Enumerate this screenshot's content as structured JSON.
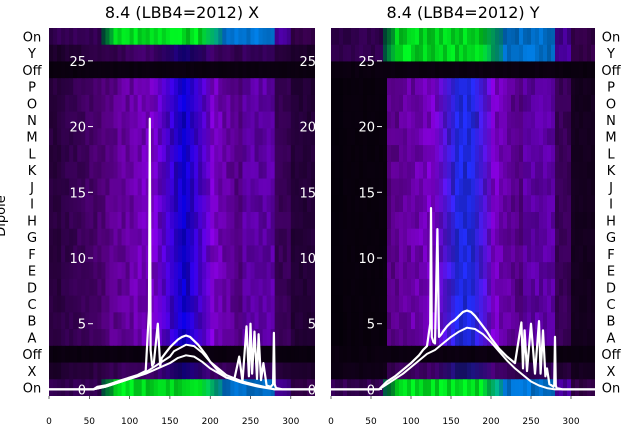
{
  "chart_data": [
    {
      "type": "heatmap",
      "title": "8.4 (LBB4=2012) X",
      "ylabel": "Dipole",
      "row_labels_top_to_bottom": [
        "On",
        "Y",
        "Off",
        "P",
        "O",
        "N",
        "M",
        "L",
        "K",
        "J",
        "I",
        "H",
        "G",
        "F",
        "E",
        "D",
        "C",
        "B",
        "A",
        "Off",
        "X",
        "On"
      ],
      "xlim": [
        0,
        330
      ],
      "xticks": [
        0,
        50,
        100,
        150,
        200,
        250,
        300
      ],
      "overlay_ylim": [
        -0.5,
        27.5
      ],
      "overlay_yticks": [
        0,
        5,
        10,
        15,
        20,
        25
      ],
      "overlay_series": [
        {
          "x": [
            0,
            55,
            60,
            70,
            80,
            90,
            100,
            110,
            120,
            124,
            125,
            126,
            128,
            130,
            135,
            138,
            140,
            145,
            150,
            155,
            160,
            165,
            170,
            175,
            180,
            185,
            190,
            195,
            200,
            210,
            220,
            230,
            236,
            240,
            245,
            248,
            250,
            252,
            255,
            258,
            260,
            263,
            266,
            270,
            275,
            278,
            279,
            280,
            281,
            282,
            290,
            300,
            310,
            320,
            330
          ],
          "y": [
            0,
            0,
            0.2,
            0.3,
            0.5,
            0.7,
            0.9,
            1.1,
            1.4,
            6,
            20.6,
            3,
            1.8,
            2,
            5,
            1.8,
            2.4,
            2.8,
            3.2,
            3.5,
            3.8,
            4,
            4.1,
            4,
            3.7,
            3.4,
            3,
            2.6,
            2.1,
            1.4,
            0.9,
            0.8,
            2.5,
            0.6,
            4.8,
            1,
            5,
            1.2,
            4.4,
            0.8,
            4.2,
            0.7,
            2,
            0.3,
            0.2,
            0.4,
            4.3,
            0.4,
            0.2,
            0.1,
            0,
            0,
            0,
            0,
            0
          ]
        },
        {
          "x": [
            0,
            55,
            70,
            90,
            110,
            120,
            150,
            155,
            170,
            180,
            190,
            200,
            220,
            240,
            260,
            280,
            330
          ],
          "y": [
            0,
            0,
            0.2,
            0.6,
            1,
            1.3,
            2.5,
            2.9,
            3.4,
            3.3,
            2.8,
            2.1,
            1.1,
            0.6,
            0.3,
            0,
            0
          ]
        },
        {
          "x": [
            0,
            55,
            70,
            90,
            110,
            120,
            150,
            160,
            170,
            180,
            190,
            200,
            220,
            240,
            260,
            280,
            330
          ],
          "y": [
            0,
            0,
            0.2,
            0.6,
            1,
            1.2,
            2,
            2.4,
            2.6,
            2.5,
            2.1,
            1.6,
            0.9,
            0.5,
            0.2,
            0,
            0
          ]
        }
      ]
    },
    {
      "type": "heatmap",
      "title": "8.4 (LBB4=2012) Y",
      "row_labels_top_to_bottom": [
        "On",
        "Y",
        "Off",
        "P",
        "O",
        "N",
        "M",
        "L",
        "K",
        "J",
        "I",
        "H",
        "G",
        "F",
        "E",
        "D",
        "C",
        "B",
        "A",
        "Off",
        "X",
        "On"
      ],
      "xlim": [
        0,
        330
      ],
      "xticks": [
        0,
        50,
        100,
        150,
        200,
        250,
        300
      ],
      "overlay_ylim": [
        -0.5,
        27.5
      ],
      "overlay_yticks": [
        0,
        5,
        10,
        15,
        20,
        25
      ],
      "overlay_series": [
        {
          "x": [
            0,
            60,
            70,
            80,
            90,
            100,
            110,
            115,
            120,
            124,
            125,
            126,
            128,
            130,
            133,
            135,
            138,
            140,
            145,
            150,
            155,
            160,
            165,
            170,
            175,
            180,
            185,
            190,
            195,
            200,
            210,
            220,
            230,
            238,
            240,
            242,
            245,
            250,
            255,
            260,
            262,
            265,
            268,
            270,
            273,
            276,
            278,
            279,
            280,
            281,
            282,
            290,
            300,
            310,
            320,
            330
          ],
          "y": [
            0,
            0,
            0.6,
            1,
            1.5,
            2,
            2.6,
            3,
            3.3,
            5,
            13.8,
            4,
            3.6,
            3.5,
            12.2,
            4,
            4.2,
            4.4,
            4.8,
            5.1,
            5.3,
            5.6,
            5.9,
            6,
            5.9,
            5.6,
            5.2,
            4.8,
            4.4,
            3.9,
            3.1,
            2.5,
            2,
            5.1,
            1.6,
            4.5,
            1.4,
            5,
            1.2,
            5.2,
            1.2,
            4.5,
            1,
            1.6,
            0.4,
            0.3,
            0.2,
            0.3,
            4,
            0.3,
            0.1,
            0,
            0,
            0,
            0,
            0
          ]
        },
        {
          "x": [
            0,
            60,
            70,
            80,
            90,
            100,
            110,
            120,
            130,
            140,
            150,
            160,
            170,
            180,
            190,
            200,
            210,
            220,
            230,
            240,
            250,
            260,
            270,
            280,
            330
          ],
          "y": [
            0,
            0,
            0.4,
            0.8,
            1.2,
            1.7,
            2.2,
            2.7,
            3,
            3.5,
            4,
            4.4,
            4.7,
            4.6,
            4.2,
            3.6,
            2.9,
            2.2,
            1.6,
            1.1,
            0.6,
            0.3,
            0.1,
            0,
            0
          ]
        }
      ]
    }
  ]
}
